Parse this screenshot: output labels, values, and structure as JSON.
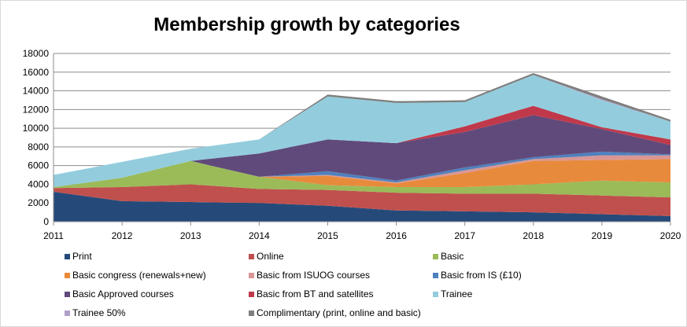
{
  "chart_data": {
    "type": "area",
    "stacked": true,
    "title": "Membership growth by categories",
    "x": [
      "2011",
      "2012",
      "2013",
      "2014",
      "2015",
      "2016",
      "2017",
      "2018",
      "2019",
      "2020"
    ],
    "ylim": [
      0,
      18000
    ],
    "yticks": [
      0,
      2000,
      4000,
      6000,
      8000,
      10000,
      12000,
      14000,
      16000,
      18000
    ],
    "grid": true,
    "legend_position": "bottom",
    "series": [
      {
        "name": "Print",
        "color": "#254a7a",
        "values": [
          3200,
          2200,
          2100,
          2000,
          1700,
          1200,
          1100,
          1000,
          800,
          600
        ]
      },
      {
        "name": "Online",
        "color": "#c0504d",
        "values": [
          400,
          1500,
          1900,
          1500,
          1700,
          1900,
          1900,
          2000,
          2000,
          2000
        ]
      },
      {
        "name": "Basic",
        "color": "#9bbb59",
        "values": [
          100,
          1000,
          2500,
          1300,
          500,
          600,
          700,
          1000,
          1600,
          1600
        ]
      },
      {
        "name": "Basic congress (renewals+new)",
        "color": "#e88a3c",
        "values": [
          0,
          0,
          0,
          0,
          1000,
          400,
          1500,
          2500,
          2200,
          2500
        ]
      },
      {
        "name": "Basic from ISUOG courses",
        "color": "#d99694",
        "values": [
          0,
          0,
          0,
          0,
          100,
          100,
          300,
          200,
          500,
          400
        ]
      },
      {
        "name": "Basic from IS (£10)",
        "color": "#4f81bd",
        "values": [
          0,
          0,
          0,
          0,
          400,
          200,
          300,
          200,
          400,
          100
        ]
      },
      {
        "name": "Basic Approved courses",
        "color": "#604a7b",
        "values": [
          0,
          0,
          0,
          2500,
          3400,
          4000,
          3800,
          4500,
          2400,
          1000
        ]
      },
      {
        "name": "Basic from BT and satellites",
        "color": "#c0394b",
        "values": [
          0,
          0,
          0,
          0,
          0,
          0,
          600,
          1000,
          200,
          600
        ]
      },
      {
        "name": "Trainee",
        "color": "#93cddd",
        "values": [
          1300,
          1700,
          1300,
          1500,
          4600,
          4300,
          2600,
          3300,
          2900,
          1900
        ]
      },
      {
        "name": "Trainee 50%",
        "color": "#b1a0c7",
        "values": [
          0,
          0,
          0,
          0,
          0,
          0,
          0,
          0,
          100,
          0
        ]
      },
      {
        "name": "Complimentary (print, online and basic)",
        "color": "#7f7f7f",
        "values": [
          0,
          0,
          0,
          0,
          200,
          200,
          200,
          200,
          300,
          200
        ]
      }
    ]
  }
}
